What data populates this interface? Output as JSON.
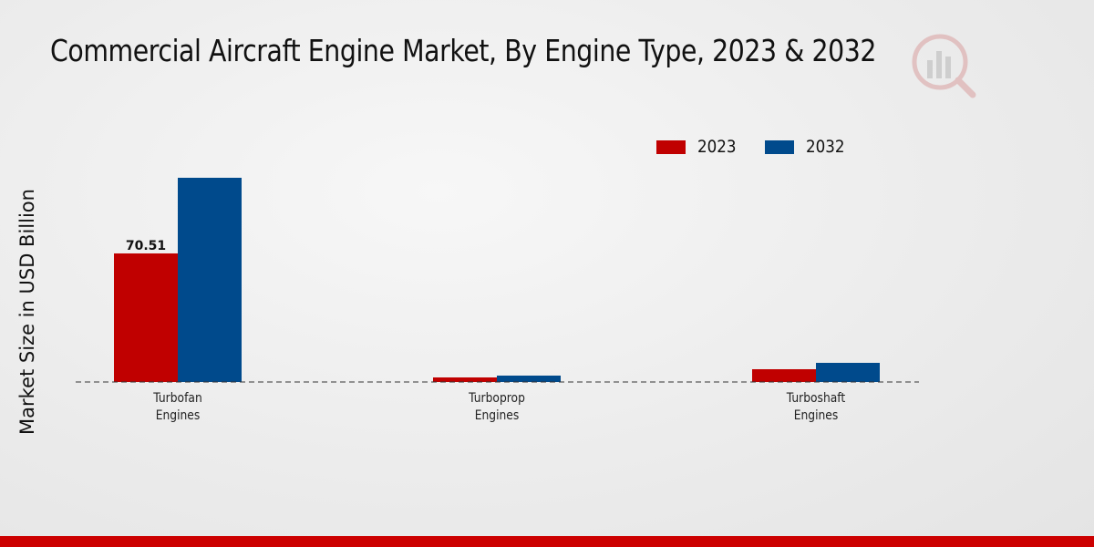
{
  "title": "Commercial Aircraft Engine Market, By Engine Type, 2023 & 2032",
  "colors": {
    "2023": "#c00000",
    "2032": "#004a8c",
    "footer": "#cc0000"
  },
  "chart_data": {
    "type": "bar",
    "title": "Commercial Aircraft Engine Market, By Engine Type, 2023 & 2032",
    "xlabel": "",
    "ylabel": "Market Size in USD Billion",
    "categories": [
      "Turbofan\nEngines",
      "Turboprop\nEngines",
      "Turboshaft\nEngines"
    ],
    "series": [
      {
        "name": "2023",
        "values": [
          70.51,
          2.5,
          7.0
        ]
      },
      {
        "name": "2032",
        "values": [
          112.0,
          3.5,
          10.5
        ]
      }
    ],
    "data_labels": [
      {
        "series": 0,
        "index": 0,
        "text": "70.51"
      }
    ],
    "ylim": [
      0,
      140
    ],
    "grid": false,
    "legend": "top-right"
  }
}
